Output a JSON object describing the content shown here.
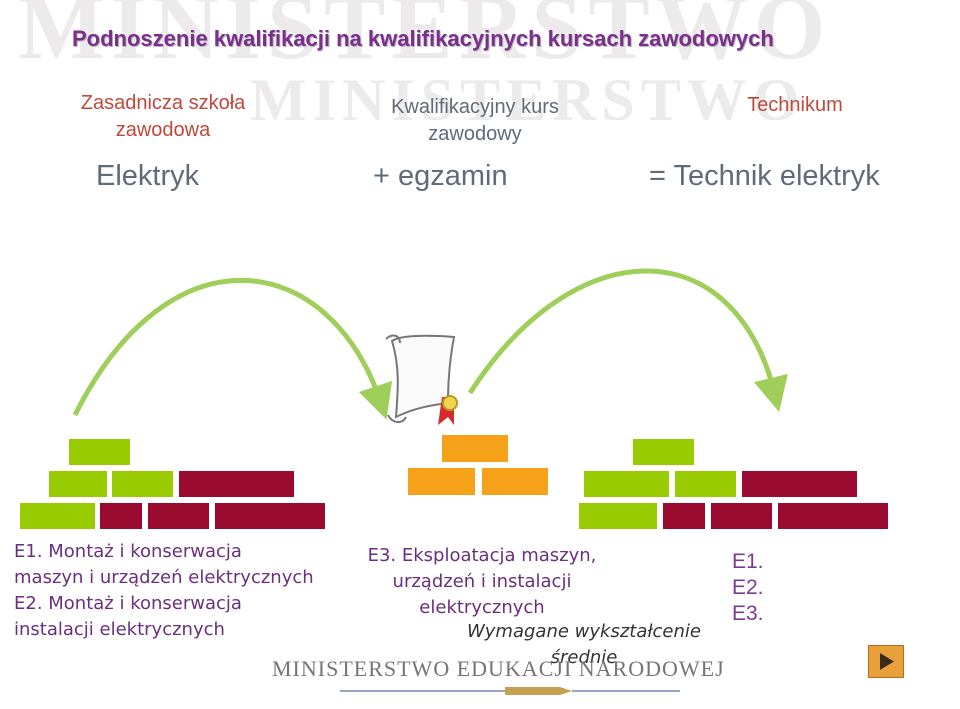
{
  "title": "Podnoszenie kwalifikacji na kwalifikacyjnych kursach zawodowych",
  "watermark": {
    "line1": "MINISTERSTWO",
    "line2": "MINISTERSTWO"
  },
  "columns": [
    {
      "heading": "Zasadnicza szkoła zawodowa",
      "big": "Elektryk"
    },
    {
      "heading": "Kwalifikacyjny kurs zawodowy",
      "big": "+ egzamin"
    },
    {
      "heading": "Technikum",
      "big": "= Technik elektryk"
    }
  ],
  "left_qualifications": [
    "E1. Montaż i konserwacja",
    "maszyn i urządzeń elektrycznych",
    "E2. Montaż i konserwacja",
    "instalacji elektrycznych"
  ],
  "middle_qualification": [
    "E3. Eksploatacja maszyn,",
    "urządzeń i instalacji",
    "elektrycznych"
  ],
  "requirement": [
    "Wymagane wykształcenie",
    "średnie"
  ],
  "right_codes": [
    "E1.",
    "E2.",
    "E3."
  ],
  "footer": "MINISTERSTWO EDUKACJI NARODOWEJ",
  "colors": {
    "green": "#99cc00",
    "red": "#9b0a30",
    "orange": "#f5a21a",
    "title": "#7a2f8c",
    "arrow": "#9fcf5a"
  },
  "icons": [
    "diploma-scroll-icon",
    "arrow-curve-icon",
    "play-next-icon",
    "pencil-logo-icon"
  ]
}
